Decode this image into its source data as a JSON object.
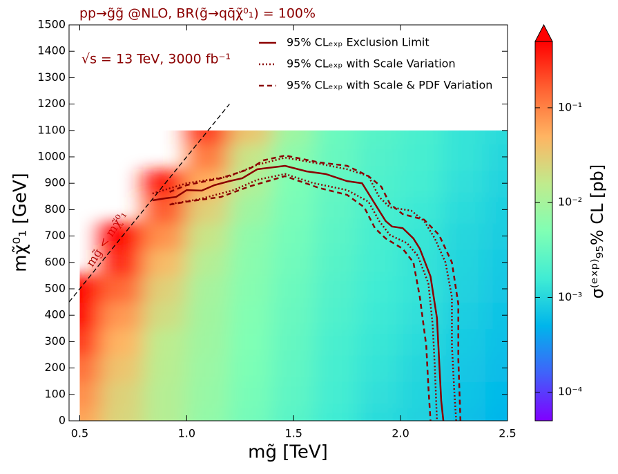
{
  "chart_data": {
    "type": "heatmap",
    "title": "pp→g̃g̃ @NLO, BR(g̃→qq̄χ̃⁰₁) = 100%",
    "annotation": "√s = 13 TeV, 3000 fb⁻¹",
    "xlabel": "mg̃ [TeV]",
    "ylabel": "mχ̃⁰₁ [GeV]",
    "colorbar_label": "σ⁽ᵉˣᵖ⁾₉₅% CL [pb]",
    "xlim": [
      0.45,
      2.5
    ],
    "xticks": [
      0.5,
      {
        "value": 1,
        "label": "1.0"
      },
      1.5,
      {
        "value": 2,
        "label": "2.0"
      },
      2.5
    ],
    "ylim": [
      0,
      1500
    ],
    "yticks": [
      0,
      100,
      200,
      300,
      400,
      500,
      600,
      700,
      800,
      900,
      1000,
      1100,
      1200,
      1300,
      1400,
      1500
    ],
    "zscale": "log",
    "zlim": [
      5e-05,
      0.5
    ],
    "zticks": [
      {
        "value": 0.0001,
        "label": "10⁻⁴"
      },
      {
        "value": 0.001,
        "label": "10⁻³"
      },
      {
        "value": 0.01,
        "label": "10⁻²"
      },
      {
        "value": 0.1,
        "label": "10⁻¹"
      }
    ],
    "colormap": [
      "#8000ff",
      "#4062fa",
      "#00b5eb",
      "#40ecd4",
      "#80ffb4",
      "#c0eb8d",
      "#ffb462",
      "#ff6232",
      "#ff0000"
    ],
    "heatmap": {
      "x": [
        0.5,
        0.7,
        0.9,
        1.1,
        1.3,
        1.5,
        1.7,
        1.9,
        2.1,
        2.3,
        2.5
      ],
      "y": [
        0,
        100,
        200,
        300,
        400,
        500,
        600,
        700,
        800,
        900,
        1000,
        1100
      ],
      "z": [
        [
          0.063,
          0.025,
          0.013,
          0.0071,
          0.004,
          0.0025,
          0.0016,
          0.0011,
          0.00089,
          0.00063,
          0.0005
        ],
        [
          0.085,
          0.027,
          0.013,
          0.0076,
          0.0043,
          0.0027,
          0.0017,
          0.0012,
          0.00095,
          0.00068,
          0.00054
        ],
        [
          0.13,
          0.036,
          0.014,
          0.0081,
          0.0046,
          0.0029,
          0.0018,
          0.0013,
          0.001,
          0.00072,
          0.00058
        ],
        [
          0.25,
          0.049,
          0.015,
          0.0087,
          0.0049,
          0.0031,
          0.0019,
          0.0014,
          0.0011,
          0.00078,
          0.00062
        ],
        [
          0.52,
          0.074,
          0.021,
          0.0093,
          0.0052,
          0.0033,
          0.0021,
          0.0015,
          0.0012,
          0.00083,
          0.00066
        ],
        [
          1.1,
          0.14,
          0.028,
          0.01,
          0.0056,
          0.0035,
          0.0022,
          0.0016,
          0.0013,
          0.00089,
          0.00071
        ],
        [
          null,
          0.3,
          0.043,
          0.013,
          0.006,
          0.0038,
          0.0024,
          0.0017,
          0.0013,
          0.00095,
          0.00076
        ],
        [
          null,
          0.65,
          0.081,
          0.018,
          0.0065,
          0.0041,
          0.0026,
          0.0018,
          0.0014,
          0.001,
          0.00081
        ],
        [
          null,
          null,
          0.17,
          0.028,
          0.0087,
          0.0044,
          0.0028,
          0.0019,
          0.0015,
          0.0011,
          0.00087
        ],
        [
          null,
          null,
          0.37,
          0.052,
          0.012,
          0.0047,
          0.003,
          0.0021,
          0.0017,
          0.0012,
          0.00093
        ],
        [
          null,
          null,
          null,
          0.11,
          0.018,
          0.0063,
          0.0032,
          0.0022,
          0.0018,
          0.0013,
          0.001
        ],
        [
          null,
          null,
          null,
          0.24,
          0.034,
          0.0085,
          0.0034,
          0.0024,
          0.0019,
          0.0013,
          0.0011
        ]
      ]
    },
    "contours": [
      {
        "name": "95% CLₑₓₚ Exclusion Limit",
        "color": "#8b0000",
        "style": "solid",
        "curves": [
          {
            "x": [
              0.84,
              0.9,
              0.95,
              1.0,
              1.07,
              1.13,
              1.2,
              1.26,
              1.33,
              1.46,
              1.56,
              1.65,
              1.75,
              1.82,
              1.85,
              1.9,
              1.93,
              1.96,
              2.01,
              2.06,
              2.09,
              2.14,
              2.17,
              2.18,
              2.19,
              2.2
            ],
            "y": [
              835,
              843,
              848,
              874,
              872,
              893,
              908,
              919,
              953,
              966,
              945,
              935,
              908,
              900,
              861,
              796,
              757,
              736,
              730,
              691,
              652,
              547,
              390,
              233,
              76,
              0
            ]
          }
        ]
      },
      {
        "name": "95% CLₑₓₚ with Scale Variation",
        "color": "#8b0000",
        "style": "dotted",
        "curves": [
          {
            "x": [
              0.84,
              1.0,
              1.2,
              1.33,
              1.46,
              1.62,
              1.75,
              1.85,
              1.9,
              1.95,
              2.05,
              2.11,
              2.16,
              2.21,
              2.24,
              2.24,
              2.25,
              2.26
            ],
            "y": [
              861,
              900,
              926,
              970,
              997,
              974,
              953,
              927,
              848,
              809,
              796,
              757,
              691,
              600,
              469,
              285,
              128,
              0
            ]
          },
          {
            "x": [
              0.93,
              1.06,
              1.22,
              1.33,
              1.46,
              1.59,
              1.75,
              1.85,
              1.9,
              1.95,
              2.03,
              2.08,
              2.13,
              2.15,
              2.16,
              2.17
            ],
            "y": [
              822,
              840,
              874,
              913,
              935,
              901,
              874,
              830,
              757,
              704,
              673,
              626,
              521,
              364,
              207,
              0
            ]
          }
        ]
      },
      {
        "name": "95% CLₑₓₚ with Scale & PDF Variation",
        "color": "#8b0000",
        "style": "dashed",
        "curves": [
          {
            "x": [
              0.92,
              1.0,
              1.16,
              1.29,
              1.36,
              1.46,
              1.62,
              1.75,
              1.85,
              1.91,
              1.95,
              2.01,
              2.11,
              2.18,
              2.24,
              2.27,
              2.27,
              2.28
            ],
            "y": [
              867,
              893,
              919,
              953,
              987,
              1005,
              979,
              966,
              927,
              887,
              822,
              783,
              762,
              704,
              600,
              442,
              233,
              0
            ]
          },
          {
            "x": [
              0.92,
              1.0,
              1.16,
              1.29,
              1.46,
              1.62,
              1.75,
              1.83,
              1.88,
              1.93,
              2.01,
              2.06,
              2.09,
              2.12,
              2.13,
              2.14
            ],
            "y": [
              819,
              830,
              848,
              887,
              927,
              882,
              856,
              809,
              730,
              691,
              652,
              600,
              469,
              285,
              128,
              0
            ]
          }
        ]
      }
    ],
    "reference_line": {
      "label": "mg̃ < mχ̃⁰₁",
      "color": "#000000",
      "x": [
        0.45,
        1.2
      ],
      "y": [
        450,
        1200
      ]
    }
  }
}
